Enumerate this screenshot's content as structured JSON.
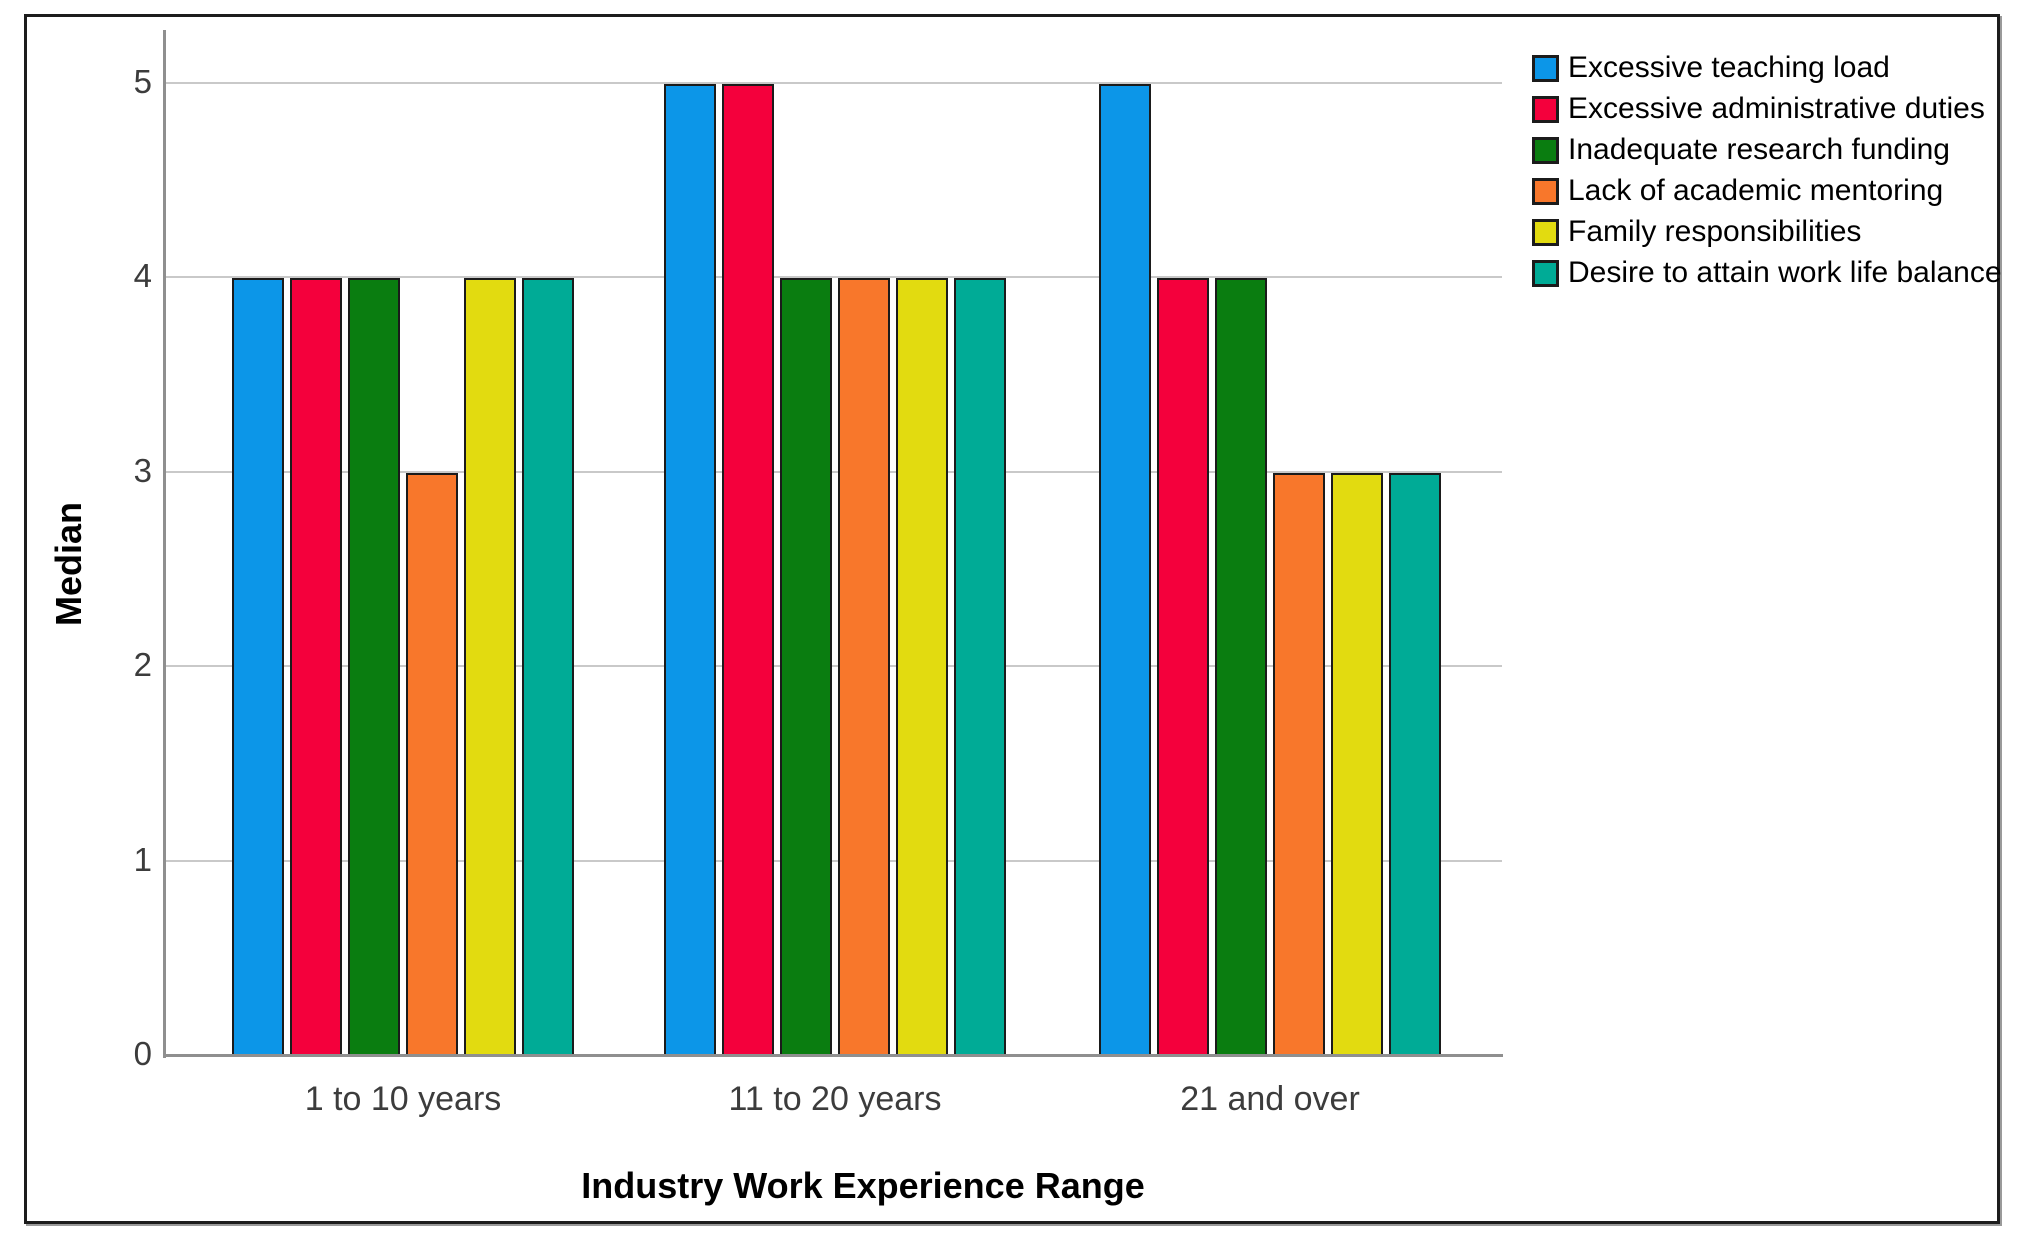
{
  "chart_data": {
    "type": "bar",
    "title": "",
    "ylabel": "Median",
    "xlabel": "Industry Work Experience Range",
    "categories": [
      "1 to 10 years",
      "11 to 20 years",
      "21 and over"
    ],
    "series": [
      {
        "name": "Excessive teaching load",
        "color": "#0c96e8",
        "values": [
          4,
          5,
          5
        ]
      },
      {
        "name": "Excessive administrative duties",
        "color": "#f4003c",
        "values": [
          4,
          5,
          4
        ]
      },
      {
        "name": "Inadequate research funding",
        "color": "#0a7d10",
        "values": [
          4,
          4,
          4
        ]
      },
      {
        "name": "Lack of academic mentoring",
        "color": "#f8772b",
        "values": [
          3,
          4,
          3
        ]
      },
      {
        "name": "Family responsibilities",
        "color": "#e2db10",
        "values": [
          4,
          4,
          3
        ]
      },
      {
        "name": "Desire to attain work life balance",
        "color": "#00ab96",
        "values": [
          4,
          4,
          3
        ]
      }
    ],
    "ylim": [
      0,
      5
    ],
    "yticks": [
      0,
      1,
      2,
      3,
      4,
      5
    ],
    "grid": true,
    "legend_position": "top-right",
    "bar_border_color": "#1b1b1b",
    "axis_color": "#8f8f8f",
    "gridline_color": "#c9c9c9",
    "tick_label_color": "#3c3c3c"
  }
}
